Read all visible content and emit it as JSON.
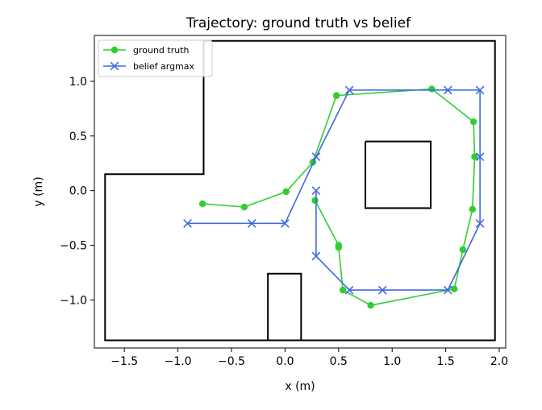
{
  "chart_data": {
    "type": "line",
    "title": "Trajectory: ground truth vs belief",
    "xlabel": "x (m)",
    "ylabel": "y (m)",
    "xlim": [
      -1.78,
      2.06
    ],
    "ylim": [
      -1.44,
      1.42
    ],
    "xticks": [
      -1.5,
      -1.0,
      -0.5,
      0.0,
      0.5,
      1.0,
      1.5,
      2.0
    ],
    "xtick_labels": [
      "−1.5",
      "−1.0",
      "−0.5",
      "0.0",
      "0.5",
      "1.0",
      "1.5",
      "2.0"
    ],
    "yticks": [
      -1.0,
      -0.5,
      0.0,
      0.5,
      1.0
    ],
    "ytick_labels": [
      "−1.0",
      "−0.5",
      "0.0",
      "0.5",
      "1.0"
    ],
    "grid": false,
    "legend_position": "top-left",
    "obstacles": [
      {
        "name": "outer-wall",
        "points": [
          [
            -0.76,
            1.37
          ],
          [
            1.96,
            1.37
          ],
          [
            1.96,
            -1.37
          ],
          [
            -1.68,
            -1.37
          ],
          [
            -1.68,
            0.15
          ],
          [
            -0.76,
            0.15
          ],
          [
            -0.76,
            1.37
          ]
        ]
      },
      {
        "name": "square-obstacle",
        "points": [
          [
            0.75,
            0.45
          ],
          [
            1.36,
            0.45
          ],
          [
            1.36,
            -0.16
          ],
          [
            0.75,
            -0.16
          ],
          [
            0.75,
            0.45
          ]
        ]
      },
      {
        "name": "rect-obstacle",
        "points": [
          [
            -0.16,
            -1.37
          ],
          [
            -0.16,
            -0.76
          ],
          [
            0.15,
            -0.76
          ],
          [
            0.15,
            -1.37
          ]
        ]
      }
    ],
    "series": [
      {
        "name": "ground truth",
        "color": "#32cd32",
        "marker": "circle",
        "x": [
          -0.77,
          -0.38,
          0.01,
          0.26,
          0.48,
          1.37,
          1.76,
          1.77,
          1.75,
          1.66,
          1.58,
          0.8,
          0.54,
          0.5,
          0.5,
          0.28
        ],
        "y": [
          -0.12,
          -0.15,
          -0.01,
          0.26,
          0.87,
          0.93,
          0.63,
          0.31,
          -0.17,
          -0.54,
          -0.9,
          -1.05,
          -0.91,
          -0.52,
          -0.5,
          -0.09
        ]
      },
      {
        "name": "belief argmax",
        "color": "#4169e1",
        "marker": "x",
        "x": [
          -0.91,
          -0.31,
          0.0,
          0.29,
          0.6,
          1.52,
          1.82,
          1.82,
          1.82,
          1.52,
          0.91,
          0.6,
          0.29,
          0.29
        ],
        "y": [
          -0.3,
          -0.3,
          -0.3,
          0.31,
          0.92,
          0.92,
          0.92,
          0.31,
          -0.3,
          -0.91,
          -0.91,
          -0.91,
          -0.6,
          0.0
        ]
      }
    ]
  }
}
